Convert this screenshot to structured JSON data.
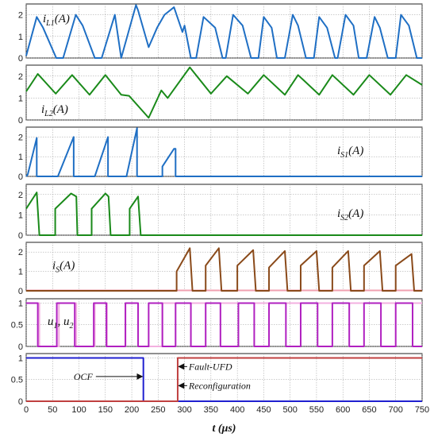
{
  "chart_data": [
    {
      "type": "line",
      "panel": "iL1",
      "label_main": "i",
      "label_sub": "L1",
      "label_unit": "(A)",
      "ylim": [
        0,
        2.5
      ],
      "yticks": [
        "0",
        "1",
        "2"
      ],
      "grid": true,
      "series": [
        {
          "color": "#1f6fc4",
          "x": [
            0,
            20,
            32,
            57,
            70,
            94,
            107,
            130,
            143,
            168,
            180,
            208,
            212,
            232,
            248,
            262,
            280,
            296,
            300,
            312,
            322,
            336,
            358,
            372,
            378,
            392,
            410,
            426,
            440,
            450,
            465,
            475,
            490,
            505,
            515,
            530,
            545,
            555,
            570,
            585,
            590,
            605,
            620,
            630,
            645,
            660,
            670,
            685,
            700,
            710,
            725,
            740,
            750
          ],
          "y": [
            0.1,
            1.9,
            1.4,
            0,
            0,
            2.0,
            1.5,
            0,
            0,
            2.0,
            0,
            2.45,
            2.2,
            0.5,
            1.4,
            2.0,
            2.35,
            1.2,
            1.5,
            0,
            0,
            1.9,
            1.4,
            0,
            0,
            2.0,
            1.5,
            0,
            0,
            1.9,
            1.4,
            0,
            0,
            2.0,
            1.5,
            0,
            0,
            1.9,
            1.4,
            0,
            0,
            2.0,
            1.5,
            0,
            0,
            1.9,
            1.4,
            0,
            0,
            2.0,
            1.5,
            0,
            0
          ]
        }
      ]
    },
    {
      "type": "line",
      "panel": "iL2",
      "label_main": "i",
      "label_sub": "L2",
      "label_unit": "(A)",
      "ylim": [
        0,
        2.5
      ],
      "yticks": [
        "0",
        "1",
        "2"
      ],
      "grid": true,
      "series": [
        {
          "color": "#1a8a1a",
          "x": [
            0,
            22,
            56,
            87,
            120,
            150,
            180,
            195,
            232,
            256,
            268,
            310,
            350,
            380,
            420,
            450,
            490,
            515,
            555,
            580,
            620,
            650,
            690,
            720,
            750
          ],
          "y": [
            1.3,
            2.1,
            1.2,
            2.05,
            1.15,
            2.05,
            1.15,
            1.1,
            0.1,
            1.35,
            1.0,
            2.4,
            1.2,
            2.0,
            1.2,
            2.05,
            1.15,
            2.05,
            1.15,
            2.05,
            1.15,
            2.05,
            1.15,
            2.05,
            1.6
          ]
        }
      ]
    },
    {
      "type": "line",
      "panel": "iS1",
      "label_main": "i",
      "label_sub": "S1",
      "label_unit": "(A)",
      "ylim": [
        0,
        2.5
      ],
      "yticks": [
        "0",
        "1",
        "2"
      ],
      "grid": true,
      "series": [
        {
          "color": "#1f6fc4",
          "x": [
            0,
            3,
            20,
            20,
            40,
            60,
            90,
            90,
            130,
            155,
            155,
            190,
            210,
            210,
            233,
            233,
            254,
            258,
            258,
            280,
            283,
            283,
            750
          ],
          "y": [
            0,
            0.1,
            1.95,
            0,
            0,
            0,
            2.0,
            0,
            0,
            2.0,
            0,
            0,
            2.45,
            0,
            0,
            0,
            0,
            0,
            0.5,
            1.4,
            1.4,
            0,
            0
          ]
        }
      ]
    },
    {
      "type": "line",
      "panel": "iS2",
      "label_main": "i",
      "label_sub": "S2",
      "label_unit": "(A)",
      "ylim": [
        0,
        2.5
      ],
      "yticks": [
        "0",
        "1",
        "2"
      ],
      "grid": true,
      "series": [
        {
          "color": "#1a8a1a",
          "x": [
            0,
            20,
            25,
            55,
            55,
            85,
            95,
            97,
            124,
            124,
            150,
            156,
            160,
            196,
            196,
            212,
            217,
            750
          ],
          "y": [
            1.3,
            2.1,
            0,
            0,
            1.3,
            2.05,
            1.9,
            0,
            0,
            1.3,
            2.05,
            1.9,
            0,
            0,
            1.3,
            1.9,
            0,
            0
          ]
        }
      ]
    },
    {
      "type": "line",
      "panel": "iS",
      "label_main": "i",
      "label_sub": "S",
      "label_unit": "(A)",
      "ylim": [
        0,
        2.5
      ],
      "yticks": [
        "0",
        "1",
        "2"
      ],
      "grid": true,
      "series": [
        {
          "color": "#f0a0b0",
          "x": [
            0,
            750
          ],
          "y": [
            0.02,
            0.02
          ]
        },
        {
          "color": "#8a4a1a",
          "x": [
            0,
            285,
            285,
            310,
            315,
            315,
            340,
            340,
            365,
            370,
            370,
            400,
            400,
            430,
            435,
            435,
            460,
            460,
            490,
            495,
            495,
            520,
            520,
            550,
            555,
            555,
            580,
            580,
            610,
            615,
            615,
            640,
            640,
            670,
            675,
            675,
            700,
            700,
            730,
            735,
            735,
            750
          ],
          "y": [
            0,
            0,
            1.0,
            2.2,
            0,
            0,
            0,
            1.3,
            2.2,
            0,
            0,
            0,
            1.3,
            2.1,
            0,
            0,
            0,
            1.2,
            2.05,
            0,
            0,
            0,
            1.3,
            2.05,
            0,
            0,
            0,
            1.2,
            2.05,
            0,
            0,
            0,
            1.3,
            2.05,
            0,
            0,
            0,
            1.3,
            1.9,
            0,
            0,
            0
          ]
        }
      ]
    },
    {
      "type": "line",
      "panel": "u1u2",
      "label_main": "u",
      "label_sub": "1",
      "label_sep": ", u",
      "label_sub2": "2",
      "ylim": [
        0,
        1.1
      ],
      "yticks": [
        "0",
        "0.5",
        "1"
      ],
      "grid": true,
      "series": [
        {
          "color": "#f3b0e0",
          "x": [
            0,
            0,
            25,
            25,
            62,
            62,
            95,
            95,
            130,
            130,
            153,
            153,
            188,
            188,
            212,
            212,
            235,
            235,
            258,
            258,
            282,
            282,
            750
          ],
          "y": [
            1,
            1,
            1,
            0,
            0,
            1,
            1,
            0,
            0,
            1,
            1,
            0,
            0,
            1,
            1,
            0,
            0,
            0,
            0,
            1,
            1,
            1,
            1
          ]
        },
        {
          "color": "#b020c0",
          "x": [
            0,
            0,
            22,
            22,
            58,
            58,
            92,
            92,
            128,
            128,
            152,
            152,
            188,
            188,
            212,
            212,
            232,
            232,
            258,
            258,
            283,
            283,
            295,
            295,
            312,
            312,
            340,
            340,
            368,
            368,
            402,
            402,
            432,
            432,
            460,
            460,
            492,
            492,
            520,
            520,
            552,
            552,
            580,
            580,
            612,
            612,
            640,
            640,
            672,
            672,
            700,
            700,
            732,
            732,
            750
          ],
          "y": [
            1,
            1,
            1,
            0,
            0,
            1,
            1,
            0,
            0,
            1,
            1,
            0,
            0,
            1,
            1,
            0,
            0,
            1,
            1,
            0,
            0,
            1,
            1,
            1,
            1,
            0,
            0,
            1,
            1,
            0,
            0,
            1,
            1,
            0,
            0,
            1,
            1,
            0,
            0,
            1,
            1,
            0,
            0,
            1,
            1,
            0,
            0,
            1,
            1,
            0,
            0,
            1,
            1,
            0,
            0
          ]
        }
      ]
    },
    {
      "type": "line",
      "panel": "flags",
      "ylim": [
        0,
        1.1
      ],
      "yticks": [
        "0",
        "0.5",
        "1"
      ],
      "grid": true,
      "xlim": [
        0,
        750
      ],
      "xticks": [
        "0",
        "50",
        "100",
        "150",
        "200",
        "250",
        "300",
        "350",
        "400",
        "450",
        "500",
        "550",
        "600",
        "650",
        "700",
        "750"
      ],
      "xlabel": "t (μs)",
      "series": [
        {
          "color": "#2020d0",
          "x": [
            0,
            222,
            222,
            750
          ],
          "y": [
            1,
            1,
            0,
            0
          ]
        },
        {
          "color": "#c04040",
          "x": [
            0,
            287,
            287,
            750
          ],
          "y": [
            0,
            0,
            1,
            1
          ]
        }
      ],
      "annotations": [
        {
          "text": "OCF",
          "x": 135,
          "y": 0.57
        },
        {
          "text": "Fault-UFD",
          "x": 308,
          "y": 0.8
        },
        {
          "text": "Reconfiguration",
          "x": 308,
          "y": 0.36
        }
      ]
    }
  ]
}
